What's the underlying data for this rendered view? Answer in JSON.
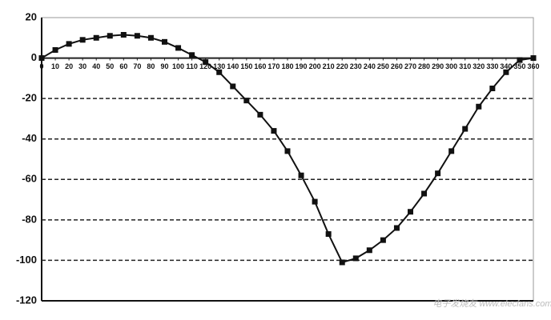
{
  "chart_data": {
    "type": "line",
    "x": [
      0,
      10,
      20,
      30,
      40,
      50,
      60,
      70,
      80,
      90,
      100,
      110,
      120,
      130,
      140,
      150,
      160,
      170,
      180,
      190,
      200,
      210,
      220,
      230,
      240,
      250,
      260,
      270,
      280,
      290,
      300,
      310,
      320,
      330,
      340,
      350,
      360
    ],
    "series": [
      {
        "color": "#111111",
        "values": [
          0,
          4,
          7,
          9,
          10,
          11,
          11.5,
          11,
          10,
          8,
          5,
          1.5,
          -2,
          -7,
          -14,
          -21,
          -28,
          -36,
          -46,
          -58,
          -71,
          -87,
          -101,
          -99,
          -95,
          -90,
          -84,
          -76,
          -67,
          -57,
          -46,
          -35,
          -24,
          -15,
          -7,
          -1,
          0
        ]
      }
    ],
    "xlim": [
      0,
      360
    ],
    "xticks": [
      0,
      10,
      20,
      30,
      40,
      50,
      60,
      70,
      80,
      90,
      100,
      110,
      120,
      130,
      140,
      150,
      160,
      170,
      180,
      190,
      200,
      210,
      220,
      230,
      240,
      250,
      260,
      270,
      280,
      290,
      300,
      310,
      320,
      330,
      340,
      350,
      360
    ],
    "ylim": [
      -120,
      20
    ],
    "yticks": [
      -120,
      -100,
      -80,
      -60,
      -40,
      -20,
      0,
      20
    ],
    "grid": true,
    "watermark": "电子发烧友 www.elecfans.com"
  }
}
